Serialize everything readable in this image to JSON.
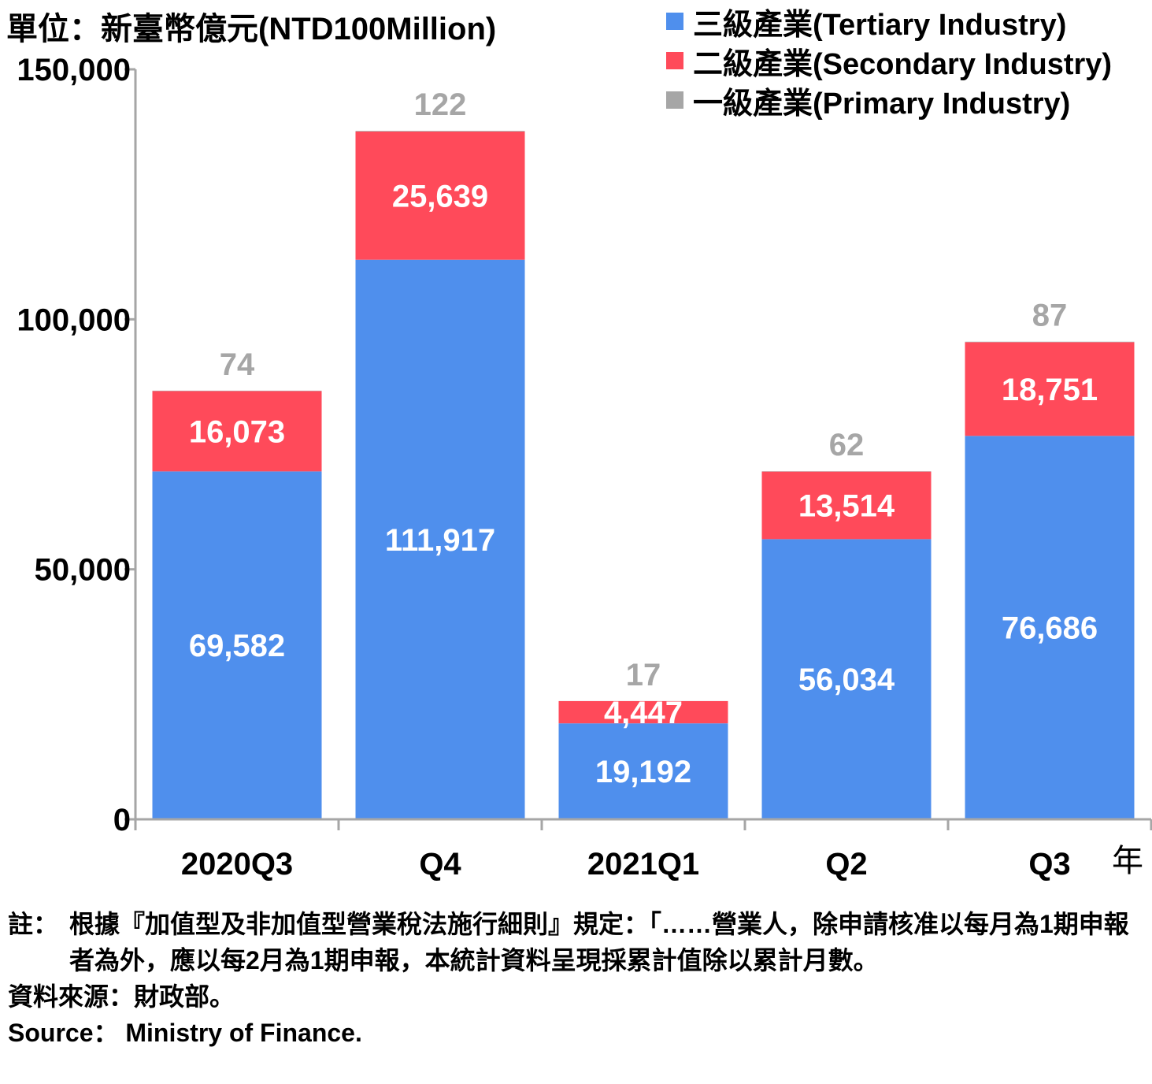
{
  "unit_label": "單位：新臺幣億元(NTD100Million)",
  "year_label": "年",
  "colors": {
    "tertiary": "#4f8fed",
    "secondary": "#ff4a5a",
    "primary": "#a6a6a6",
    "axis": "#a6a6a6"
  },
  "chart_data": {
    "type": "bar",
    "stacked": true,
    "categories": [
      "2020Q3",
      "Q4",
      "2021Q1",
      "Q2",
      "Q3"
    ],
    "series": [
      {
        "name": "一級產業(Primary Industry)",
        "key": "primary",
        "values": [
          74,
          122,
          17,
          62,
          87
        ]
      },
      {
        "name": "二級產業(Secondary Industry)",
        "key": "secondary",
        "values": [
          16073,
          25639,
          4447,
          13514,
          18751
        ]
      },
      {
        "name": "三級產業(Tertiary Industry)",
        "key": "tertiary",
        "values": [
          69582,
          111917,
          19192,
          56034,
          76686
        ]
      }
    ],
    "value_labels": {
      "primary": [
        "74",
        "122",
        "17",
        "62",
        "87"
      ],
      "secondary": [
        "16,073",
        "25,639",
        "4,447",
        "13,514",
        "18,751"
      ],
      "tertiary": [
        "69,582",
        "111,917",
        "19,192",
        "56,034",
        "76,686"
      ]
    },
    "ylim": [
      0,
      150000
    ],
    "yticks": [
      0,
      50000,
      100000,
      150000
    ],
    "ytick_labels": [
      "0",
      "50,000",
      "100,000",
      "150,000"
    ],
    "legend_order": [
      "tertiary",
      "secondary",
      "primary"
    ],
    "legend_position": "top-right",
    "grid": false
  },
  "legend": [
    {
      "key": "tertiary",
      "label": "三級產業(Tertiary Industry)"
    },
    {
      "key": "secondary",
      "label": "二級產業(Secondary Industry)"
    },
    {
      "key": "primary",
      "label": "一級產業(Primary Industry)"
    }
  ],
  "notes": {
    "note_label": "註：",
    "note_text": "根據『加值型及非加值型營業稅法施行細則』規定：「……營業人，除申請核准以每月為1期申報者為外，應以每2月為1期申報，本統計資料呈現採累計值除以累計月數。",
    "source_zh": "資料來源：財政部。",
    "source_en": "Source： Ministry of Finance."
  }
}
